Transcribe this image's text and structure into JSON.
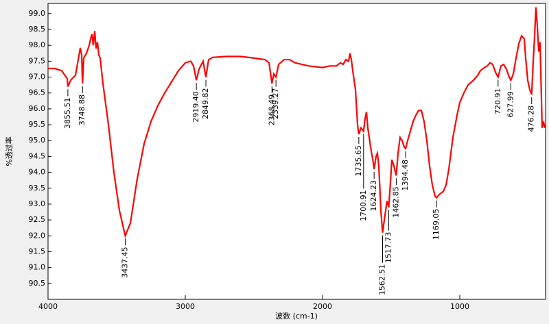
{
  "chart_data": {
    "type": "line",
    "x_label": "波数 (cm-1)",
    "y_label": "%透过率",
    "xlim": [
      4000,
      375
    ],
    "ylim": [
      90.0,
      99.32
    ],
    "xticks": [
      4000,
      3000,
      2000,
      1000
    ],
    "yticks": [
      90.5,
      {
        "value": 91.0,
        "label": "91.0"
      },
      91.5,
      {
        "value": 92.0,
        "label": "92.0"
      },
      92.5,
      {
        "value": 93.0,
        "label": "93.0"
      },
      93.5,
      {
        "value": 94.0,
        "label": "94.0"
      },
      94.5,
      {
        "value": 95.0,
        "label": "95.0"
      },
      95.5,
      {
        "value": 96.0,
        "label": "96.0"
      },
      96.5,
      {
        "value": 97.0,
        "label": "97.0"
      },
      97.5,
      {
        "value": 98.0,
        "label": "98.0"
      },
      98.5,
      {
        "value": 99.0,
        "label": "99.0"
      }
    ],
    "color": "#ff0000",
    "x": [
      4000,
      3950,
      3900,
      3860,
      3855.51,
      3835,
      3800,
      3765,
      3755,
      3748.88,
      3740,
      3720,
      3700,
      3690,
      3680,
      3670,
      3660,
      3650,
      3640,
      3630,
      3620,
      3600,
      3560,
      3520,
      3480,
      3437.45,
      3400,
      3350,
      3300,
      3250,
      3200,
      3150,
      3100,
      3050,
      3000,
      2960,
      2940,
      2919.4,
      2900,
      2870,
      2849.82,
      2830,
      2800,
      2700,
      2600,
      2500,
      2420,
      2390,
      2368.49,
      2355,
      2339.27,
      2320,
      2280,
      2240,
      2200,
      2100,
      2000,
      1950,
      1900,
      1870,
      1850,
      1830,
      1810,
      1800,
      1790,
      1780,
      1760,
      1745,
      1735.65,
      1720,
      1700.91,
      1690,
      1680,
      1670,
      1650,
      1630,
      1624.23,
      1610,
      1600,
      1590,
      1575,
      1562.51,
      1550,
      1530,
      1517.73,
      1505,
      1495,
      1480,
      1462.85,
      1450,
      1435,
      1420,
      1405,
      1394.48,
      1380,
      1360,
      1340,
      1320,
      1300,
      1280,
      1260,
      1240,
      1220,
      1200,
      1180,
      1169.05,
      1150,
      1120,
      1100,
      1080,
      1050,
      1020,
      1000,
      970,
      940,
      900,
      870,
      850,
      820,
      800,
      780,
      760,
      740,
      720.91,
      700,
      680,
      660,
      640,
      627.99,
      610,
      590,
      570,
      550,
      530,
      520,
      505,
      490,
      476.28,
      465,
      455,
      445,
      435,
      425,
      415,
      400,
      390,
      380
    ],
    "values": [
      97.27,
      97.27,
      97.2,
      96.95,
      96.7,
      96.9,
      97.06,
      97.92,
      97.7,
      96.8,
      97.6,
      97.75,
      98.0,
      98.2,
      98.35,
      98.0,
      98.45,
      97.9,
      98.1,
      97.7,
      97.6,
      96.8,
      95.5,
      94.0,
      92.8,
      92.0,
      92.4,
      93.8,
      94.9,
      95.6,
      96.1,
      96.5,
      96.85,
      97.2,
      97.45,
      97.5,
      97.35,
      96.9,
      97.25,
      97.5,
      97.0,
      97.55,
      97.62,
      97.65,
      97.65,
      97.6,
      97.55,
      97.45,
      96.8,
      97.1,
      97.0,
      97.4,
      97.55,
      97.55,
      97.45,
      97.35,
      97.3,
      97.35,
      97.35,
      97.45,
      97.4,
      97.55,
      97.5,
      97.75,
      97.55,
      97.2,
      96.6,
      95.5,
      95.2,
      95.4,
      95.3,
      95.7,
      95.9,
      95.4,
      94.8,
      94.3,
      94.1,
      94.5,
      94.6,
      94.2,
      92.8,
      92.1,
      92.5,
      93.1,
      92.9,
      93.7,
      94.4,
      94.2,
      93.9,
      94.6,
      95.1,
      95.0,
      94.8,
      94.75,
      95.0,
      95.3,
      95.6,
      95.8,
      95.95,
      95.95,
      95.6,
      95.0,
      94.2,
      93.6,
      93.25,
      93.2,
      93.3,
      93.4,
      93.6,
      94.1,
      95.1,
      95.8,
      96.2,
      96.5,
      96.75,
      96.9,
      97.05,
      97.2,
      97.3,
      97.35,
      97.45,
      97.4,
      97.15,
      97.0,
      97.35,
      97.4,
      97.25,
      97.0,
      96.9,
      97.1,
      97.6,
      98.05,
      98.3,
      98.2,
      97.6,
      96.9,
      96.6,
      96.45,
      97.5,
      98.3,
      99.2,
      98.6,
      97.8,
      98.1,
      95.4,
      95.6,
      95.4
    ],
    "peaks": [
      {
        "x": 3855.51,
        "y": 96.7,
        "label": "3855.51"
      },
      {
        "x": 3748.88,
        "y": 96.8,
        "label": "3748.88"
      },
      {
        "x": 3437.45,
        "y": 92.0,
        "label": "3437.45"
      },
      {
        "x": 2919.4,
        "y": 96.9,
        "label": "2919.40"
      },
      {
        "x": 2849.82,
        "y": 97.0,
        "label": "2849.82"
      },
      {
        "x": 2368.49,
        "y": 96.8,
        "label": "2368.49"
      },
      {
        "x": 2339.27,
        "y": 97.0,
        "label": "2339.27"
      },
      {
        "x": 1735.65,
        "y": 95.2,
        "label": "1735.65"
      },
      {
        "x": 1700.91,
        "y": 95.3,
        "label": "1700.91"
      },
      {
        "x": 1624.23,
        "y": 94.1,
        "label": "1624.23"
      },
      {
        "x": 1562.51,
        "y": 92.1,
        "label": "1562.51"
      },
      {
        "x": 1517.73,
        "y": 92.9,
        "label": "1517.73"
      },
      {
        "x": 1462.85,
        "y": 93.9,
        "label": "1462.85"
      },
      {
        "x": 1394.48,
        "y": 94.75,
        "label": "1394.48"
      },
      {
        "x": 1169.05,
        "y": 93.2,
        "label": "1169.05"
      },
      {
        "x": 720.91,
        "y": 97.0,
        "label": "720.91"
      },
      {
        "x": 627.99,
        "y": 96.9,
        "label": "627.99"
      },
      {
        "x": 476.28,
        "y": 96.45,
        "label": "476.28"
      }
    ]
  }
}
